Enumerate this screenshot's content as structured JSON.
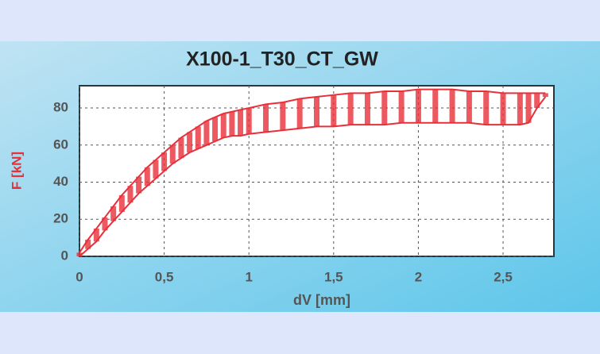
{
  "chart_data": {
    "type": "band",
    "title": "X100-1_T30_CT_GW",
    "x_label": "dV [mm]",
    "y_label": "F [kN]",
    "x": [
      0,
      0.05,
      0.1,
      0.15,
      0.2,
      0.25,
      0.3,
      0.35,
      0.4,
      0.45,
      0.5,
      0.55,
      0.6,
      0.65,
      0.7,
      0.75,
      0.8,
      0.85,
      0.9,
      0.95,
      1.0,
      1.1,
      1.2,
      1.3,
      1.4,
      1.5,
      1.6,
      1.7,
      1.8,
      1.9,
      2.0,
      2.1,
      2.2,
      2.3,
      2.4,
      2.5,
      2.6,
      2.65,
      2.7,
      2.75
    ],
    "series": [
      {
        "color": "#e8303a",
        "values": [
          2,
          9,
          15,
          21,
          27,
          33,
          38,
          43,
          48,
          52,
          56,
          60,
          64,
          67,
          70,
          73,
          75,
          77,
          78,
          79,
          80,
          82,
          83,
          85,
          86,
          87,
          88,
          88,
          89,
          89,
          90,
          90,
          90,
          89,
          89,
          88,
          88,
          88,
          88,
          88
        ]
      },
      {
        "color": "#e8303a",
        "values": [
          0,
          4,
          8,
          14,
          19,
          24,
          29,
          34,
          38,
          42,
          46,
          50,
          53,
          56,
          58,
          60,
          62,
          64,
          65,
          65,
          66,
          67,
          68,
          69,
          70,
          70,
          71,
          71,
          71,
          72,
          72,
          72,
          72,
          72,
          71,
          71,
          71,
          72,
          80,
          86
        ]
      }
    ],
    "xlim": [
      0,
      2.8
    ],
    "ylim": [
      0,
      92
    ],
    "xticks": [
      0,
      {
        "value": 0.5,
        "label": "0,5"
      },
      1,
      {
        "value": 1.5,
        "label": "1,5"
      },
      2,
      {
        "value": 2.5,
        "label": "2,5"
      }
    ],
    "yticks": [
      0,
      20,
      40,
      60,
      80
    ],
    "grid": true
  }
}
